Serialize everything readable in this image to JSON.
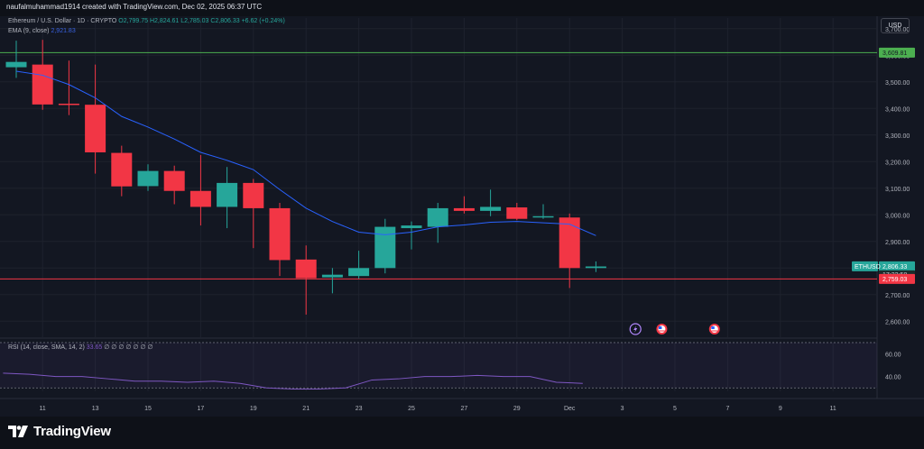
{
  "header": {
    "creator_text": "naufalmuhammad1914 created with TradingView.com, Dec 02, 2025 06:37 UTC"
  },
  "legend": {
    "symbol": "Ethereum / U.S. Dollar · 1D · CRYPTO",
    "open": "O2,799.75",
    "high": "H2,824.61",
    "low": "L2,785.03",
    "close": "C2,806.33",
    "change": "+6.62 (+0.24%)",
    "ema_label": "EMA (9, close)",
    "ema_value": "2,921.83",
    "rsi_label": "RSI (14, close, SMA, 14, 2)",
    "rsi_value": "33.65",
    "rsi_extra": "∅ ∅ ∅ ∅ ∅ ∅ ∅"
  },
  "currency_button": "USD",
  "colors": {
    "up": "#26a69a",
    "down": "#f23645",
    "ema": "#2962ff",
    "rsi": "#7e57c2",
    "resistance": "#4caf50",
    "support": "#f23645",
    "background": "#131722"
  },
  "price_badges": {
    "resistance": "3,609.81",
    "symbol": "ETHUSD",
    "last": "2,806.33",
    "countdown": "17:22:58",
    "support": "2,759.03"
  },
  "events": [
    {
      "icon": "lightning-icon",
      "day": 2.5
    },
    {
      "icon": "us-flag-icon",
      "day": 3.5
    },
    {
      "icon": "us-flag-icon",
      "day": 5.5
    }
  ],
  "chart_data": [
    {
      "type": "candlestick",
      "title": "Ethereum / U.S. Dollar · 1D · CRYPTO",
      "ylim": [
        2540,
        3740
      ],
      "y_ticks": [
        "3,700.00",
        "3,600.00",
        "3,500.00",
        "3,400.00",
        "3,300.00",
        "3,200.00",
        "3,100.00",
        "3,000.00",
        "2,900.00",
        "2,800.00",
        "2,700.00",
        "2,600.00"
      ],
      "y_tick_values": [
        3700,
        3600,
        3500,
        3400,
        3300,
        3200,
        3100,
        3000,
        2900,
        2800,
        2700,
        2600
      ],
      "x_tick_labels": [
        "11",
        "13",
        "15",
        "17",
        "19",
        "21",
        "23",
        "25",
        "27",
        "29",
        "Dec",
        "3",
        "5",
        "7",
        "9",
        "11"
      ],
      "x_tick_days": [
        11,
        13,
        15,
        17,
        19,
        21,
        23,
        25,
        27,
        29,
        31,
        33,
        35,
        37,
        39,
        41
      ],
      "candles": [
        {
          "date": "Nov 10",
          "open": 3555,
          "high": 3655,
          "low": 3515,
          "close": 3575
        },
        {
          "date": "Nov 11",
          "open": 3565,
          "high": 3658,
          "low": 3395,
          "close": 3415
        },
        {
          "date": "Nov 12",
          "open": 3418,
          "high": 3580,
          "low": 3375,
          "close": 3414
        },
        {
          "date": "Nov 13",
          "open": 3414,
          "high": 3565,
          "low": 3155,
          "close": 3235
        },
        {
          "date": "Nov 14",
          "open": 3233,
          "high": 3260,
          "low": 3070,
          "close": 3107
        },
        {
          "date": "Nov 15",
          "open": 3108,
          "high": 3190,
          "low": 3090,
          "close": 3165
        },
        {
          "date": "Nov 16",
          "open": 3165,
          "high": 3185,
          "low": 3040,
          "close": 3090
        },
        {
          "date": "Nov 17",
          "open": 3090,
          "high": 3225,
          "low": 2960,
          "close": 3030
        },
        {
          "date": "Nov 18",
          "open": 3030,
          "high": 3180,
          "low": 2950,
          "close": 3120
        },
        {
          "date": "Nov 19",
          "open": 3120,
          "high": 3135,
          "low": 2875,
          "close": 3025
        },
        {
          "date": "Nov 20",
          "open": 3025,
          "high": 3045,
          "low": 2770,
          "close": 2830
        },
        {
          "date": "Nov 21",
          "open": 2832,
          "high": 2885,
          "low": 2625,
          "close": 2762
        },
        {
          "date": "Nov 22",
          "open": 2765,
          "high": 2800,
          "low": 2705,
          "close": 2775
        },
        {
          "date": "Nov 23",
          "open": 2770,
          "high": 2865,
          "low": 2760,
          "close": 2800
        },
        {
          "date": "Nov 24",
          "open": 2800,
          "high": 2985,
          "low": 2780,
          "close": 2955
        },
        {
          "date": "Nov 25",
          "open": 2950,
          "high": 2975,
          "low": 2870,
          "close": 2960
        },
        {
          "date": "Nov 26",
          "open": 2955,
          "high": 3045,
          "low": 2895,
          "close": 3025
        },
        {
          "date": "Nov 27",
          "open": 3025,
          "high": 3070,
          "low": 3005,
          "close": 3015
        },
        {
          "date": "Nov 28",
          "open": 3015,
          "high": 3095,
          "low": 2995,
          "close": 3030
        },
        {
          "date": "Nov 29",
          "open": 3028,
          "high": 3045,
          "low": 2980,
          "close": 2985
        },
        {
          "date": "Nov 30",
          "open": 2990,
          "high": 3040,
          "low": 2985,
          "close": 2995
        },
        {
          "date": "Dec 01",
          "open": 2990,
          "high": 3005,
          "low": 2725,
          "close": 2800
        },
        {
          "date": "Dec 02",
          "open": 2800,
          "high": 2825,
          "low": 2785,
          "close": 2806
        }
      ],
      "ema": {
        "name": "EMA (9, close)",
        "values": [
          3540,
          3525,
          3490,
          3440,
          3370,
          3330,
          3285,
          3235,
          3205,
          3170,
          3095,
          3025,
          2975,
          2935,
          2925,
          2935,
          2955,
          2962,
          2972,
          2975,
          2970,
          2965,
          2922
        ]
      },
      "horizontal_lines": [
        {
          "value": 3609.81,
          "color": "#4caf50"
        },
        {
          "value": 2759.03,
          "color": "#f23645"
        }
      ]
    },
    {
      "type": "line",
      "title": "RSI (14, close, SMA, 14, 2)",
      "ylim": [
        27,
        70
      ],
      "y_ticks": [
        "60.00",
        "40.00"
      ],
      "y_tick_values": [
        60,
        40
      ],
      "values": [
        43,
        42,
        40,
        40,
        38,
        36,
        36,
        35,
        36,
        34,
        30,
        29,
        29,
        30,
        37,
        38,
        40,
        40,
        41,
        40,
        40,
        35,
        34
      ]
    }
  ]
}
